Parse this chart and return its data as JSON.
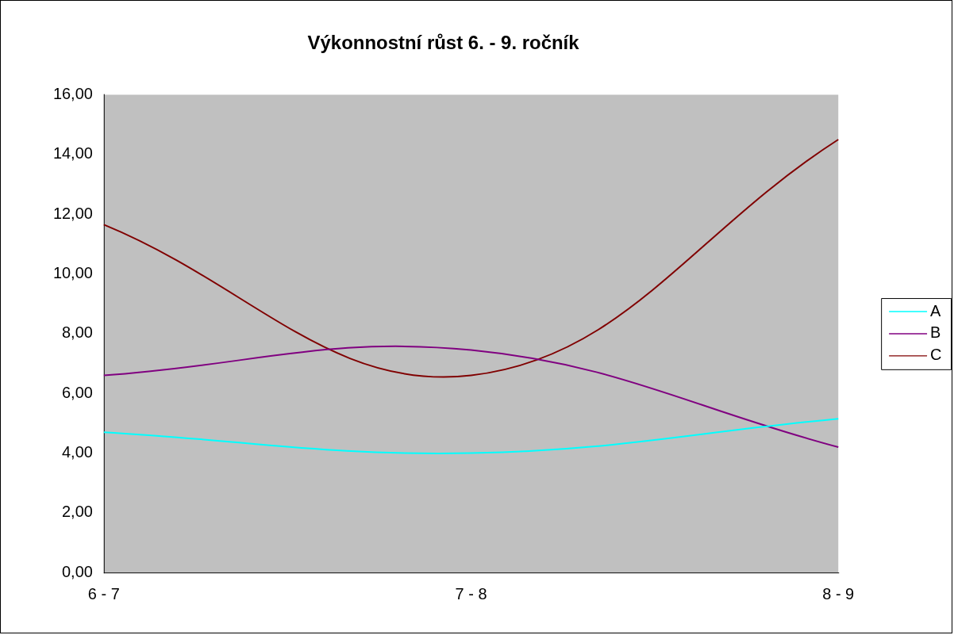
{
  "chart_data": {
    "type": "line",
    "title": "Výkonnostní růst 6. - 9. ročník",
    "categories": [
      "6 - 7",
      "7 - 8",
      "8 - 9"
    ],
    "series": [
      {
        "name": "A",
        "color": "#00ffff",
        "values": [
          4.7,
          4.0,
          5.15
        ]
      },
      {
        "name": "B",
        "color": "#800080",
        "values": [
          6.6,
          7.45,
          4.2
        ]
      },
      {
        "name": "C",
        "color": "#800000",
        "values": [
          11.65,
          6.6,
          14.5
        ]
      }
    ],
    "ylim": [
      0,
      16
    ],
    "yticks": [
      {
        "value": 0,
        "label": "0,00"
      },
      {
        "value": 2,
        "label": "2,00"
      },
      {
        "value": 4,
        "label": "4,00"
      },
      {
        "value": 6,
        "label": "6,00"
      },
      {
        "value": 8,
        "label": "8,00"
      },
      {
        "value": 10,
        "label": "10,00"
      },
      {
        "value": 12,
        "label": "12,00"
      },
      {
        "value": 14,
        "label": "14,00"
      },
      {
        "value": 16,
        "label": "16,00"
      }
    ],
    "legend": "right",
    "marker": "none"
  }
}
